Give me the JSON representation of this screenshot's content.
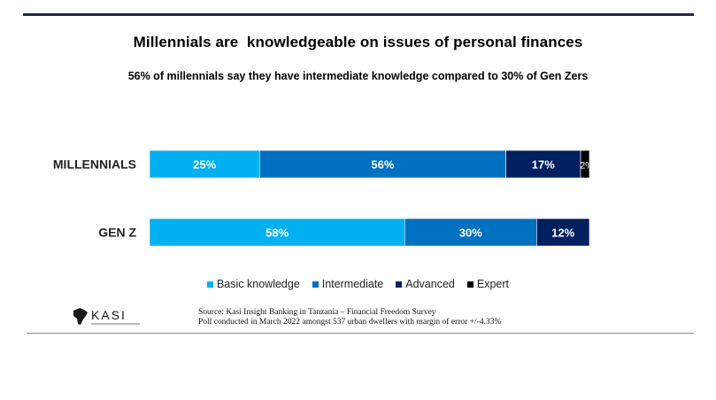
{
  "title": "Millennials are  knowledgeable on issues of personal finances",
  "subtitle": "56% of millennials say they have intermediate knowledge compared to 30% of Gen Zers",
  "chart_data": {
    "type": "bar",
    "orientation": "horizontal",
    "stacked": true,
    "categories": [
      "MILLENNIALS",
      "GEN Z"
    ],
    "series": [
      {
        "name": "Basic knowledge",
        "values": [
          25,
          58
        ],
        "color": "#00b0f0"
      },
      {
        "name": "Intermediate",
        "values": [
          56,
          30
        ],
        "color": "#0070c0"
      },
      {
        "name": "Advanced",
        "values": [
          17,
          12
        ],
        "color": "#002060"
      },
      {
        "name": "Expert",
        "values": [
          2,
          0
        ],
        "color": "#000000"
      }
    ],
    "data_labels": [
      [
        "25%",
        "56%",
        "17%",
        "2%"
      ],
      [
        "58%",
        "30%",
        "12%",
        ""
      ]
    ],
    "xlim": [
      0,
      100
    ],
    "legend_position": "bottom",
    "grid": false
  },
  "logo_text": "KASI",
  "source_lines": [
    "Source: Kasi Insight Banking in Tanzania – Financial Freedom Survey",
    "Poll conducted in March 2022 amongst 537 urban dwellers with margin of error +/-4.33%"
  ]
}
